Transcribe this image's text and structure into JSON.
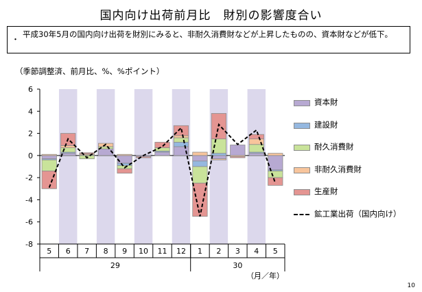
{
  "title": "国内向け出荷前月比　財別の影響度合い",
  "note": {
    "bullet": "・",
    "text": "平成30年5月の国内向け出荷を財別にみると、非耐久消費財などが上昇したものの、資本財などが低下。"
  },
  "unit_label": "（季節調整済、前月比、%、%ポイント）",
  "x_unit_label": "（月／年）",
  "page_number": "10",
  "colors": {
    "shade": "#dcd8ec",
    "capital": "#b7a9d2",
    "construction": "#95b8e0",
    "durable": "#c9e39a",
    "nondurable": "#f8c59c",
    "production": "#e49592",
    "line": "#000000"
  },
  "chart_data": {
    "type": "bar",
    "stacked": true,
    "categories": [
      "5",
      "6",
      "7",
      "8",
      "9",
      "10",
      "11",
      "12",
      "1",
      "2",
      "3",
      "4",
      "5"
    ],
    "year_labels": [
      {
        "label": "29",
        "from": 0,
        "to": 7
      },
      {
        "label": "30",
        "from": 8,
        "to": 12
      }
    ],
    "shaded_categories": [
      1,
      3,
      5,
      7,
      9,
      11
    ],
    "ylim": [
      -8,
      6
    ],
    "yticks": [
      6,
      4,
      2,
      0,
      -2,
      -4,
      -6,
      -8
    ],
    "legend_position": "right",
    "series": [
      {
        "name": "資本財",
        "color_key": "capital",
        "values": [
          -0.3,
          0.2,
          0.05,
          0.6,
          -0.7,
          -0.1,
          0.3,
          0.8,
          -0.5,
          -0.3,
          0.95,
          0.2,
          -1.3
        ]
      },
      {
        "name": "建設財",
        "color_key": "construction",
        "values": [
          -0.1,
          0.1,
          0.0,
          0.0,
          -0.2,
          0.0,
          0.1,
          0.4,
          -0.5,
          0.2,
          0.0,
          0.1,
          -0.1
        ]
      },
      {
        "name": "耐久消費財",
        "color_key": "durable",
        "values": [
          -1.0,
          0.4,
          -0.3,
          0.2,
          -0.3,
          0.0,
          0.3,
          0.4,
          -1.5,
          1.3,
          0.0,
          0.7,
          -0.6
        ]
      },
      {
        "name": "非耐久消費財",
        "color_key": "nondurable",
        "values": [
          0.1,
          0.2,
          0.1,
          0.3,
          0.1,
          0.0,
          0.0,
          0.2,
          0.3,
          -0.1,
          -0.1,
          0.5,
          0.2
        ]
      },
      {
        "name": "生産財",
        "color_key": "production",
        "values": [
          -1.6,
          1.1,
          0.1,
          0.0,
          -0.4,
          -0.1,
          0.5,
          0.9,
          -3.0,
          2.3,
          -0.1,
          0.4,
          -0.7
        ]
      }
    ],
    "line_series": {
      "name": "鉱工業出荷（国内向け）",
      "color_key": "line",
      "values": [
        -2.9,
        1.5,
        -0.2,
        1.0,
        -1.1,
        0.0,
        0.8,
        2.5,
        -5.5,
        2.8,
        1.0,
        2.3,
        -2.5
      ]
    }
  }
}
